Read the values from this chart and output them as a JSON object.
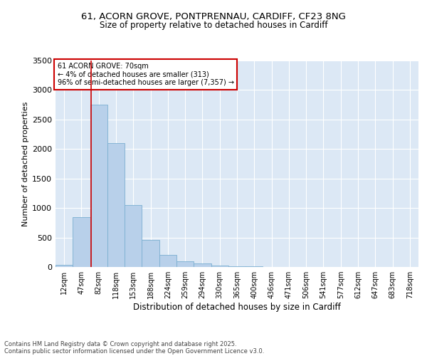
{
  "title_line1": "61, ACORN GROVE, PONTPRENNAU, CARDIFF, CF23 8NG",
  "title_line2": "Size of property relative to detached houses in Cardiff",
  "xlabel": "Distribution of detached houses by size in Cardiff",
  "ylabel": "Number of detached properties",
  "categories": [
    "12sqm",
    "47sqm",
    "82sqm",
    "118sqm",
    "153sqm",
    "188sqm",
    "224sqm",
    "259sqm",
    "294sqm",
    "330sqm",
    "365sqm",
    "400sqm",
    "436sqm",
    "471sqm",
    "506sqm",
    "541sqm",
    "577sqm",
    "612sqm",
    "647sqm",
    "683sqm",
    "718sqm"
  ],
  "values": [
    35,
    850,
    2750,
    2100,
    1050,
    460,
    200,
    100,
    55,
    30,
    10,
    8,
    5,
    3,
    2,
    1,
    1,
    0,
    0,
    0,
    0
  ],
  "bar_color": "#b8d0ea",
  "bar_edge_color": "#7aaed0",
  "vline_x": 1.55,
  "vline_color": "#cc0000",
  "annotation_title": "61 ACORN GROVE: 70sqm",
  "annotation_line2": "← 4% of detached houses are smaller (313)",
  "annotation_line3": "96% of semi-detached houses are larger (7,357) →",
  "annotation_box_color": "#ffffff",
  "annotation_border_color": "#cc0000",
  "ylim": [
    0,
    3500
  ],
  "yticks": [
    0,
    500,
    1000,
    1500,
    2000,
    2500,
    3000,
    3500
  ],
  "bg_color": "#dce8f5",
  "footer_line1": "Contains HM Land Registry data © Crown copyright and database right 2025.",
  "footer_line2": "Contains public sector information licensed under the Open Government Licence v3.0."
}
